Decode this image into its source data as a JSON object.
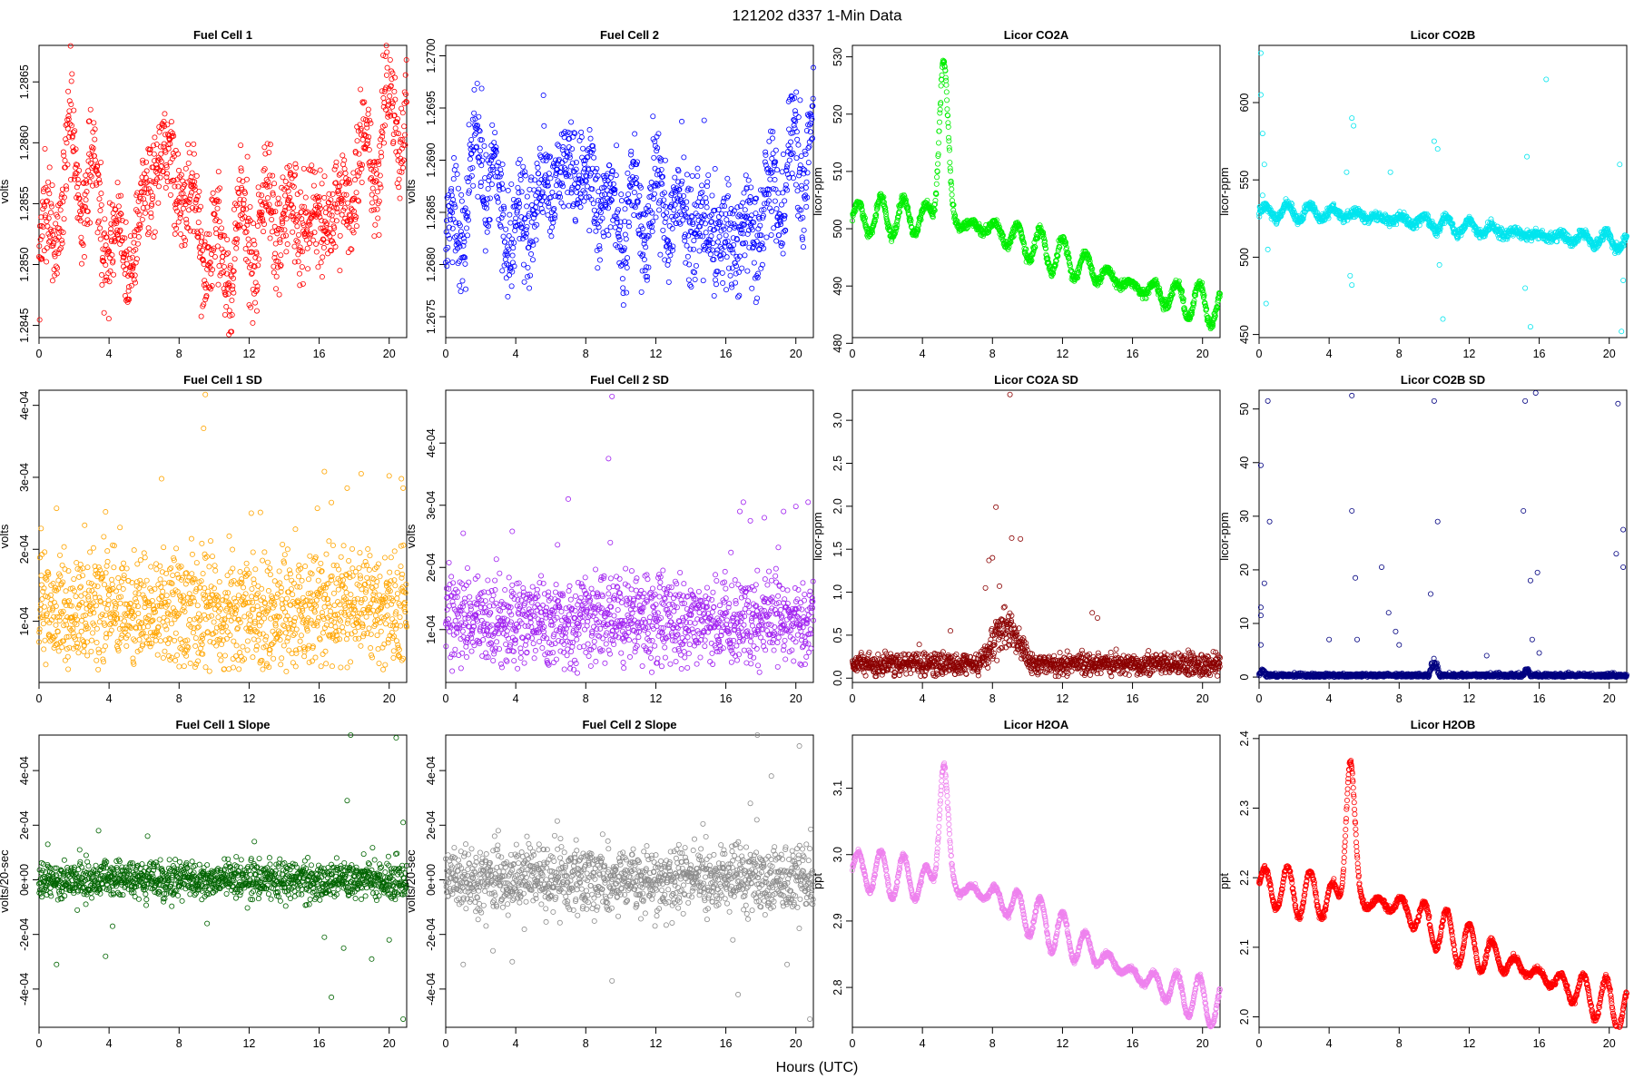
{
  "figure": {
    "title": "121202   d337   1-Min Data",
    "xlabel": "Hours (UTC)"
  },
  "chart_data": [
    {
      "type": "scatter",
      "title": "Fuel Cell 1",
      "ylabel": "volts",
      "xlim": [
        0,
        21
      ],
      "ylim": [
        1.2844,
        1.2868
      ],
      "yticks": [
        "1.2845",
        "1.2850",
        "1.2855",
        "1.2860",
        "1.2865"
      ],
      "yticks_v": [
        1.2845,
        1.285,
        1.2855,
        1.286,
        1.2865
      ],
      "xticks": [
        0,
        4,
        8,
        12,
        16,
        20
      ],
      "color": "#ff0000",
      "signal": {
        "base": 1.2855,
        "amp": 0.0004,
        "period": 1.4,
        "trend": [
          [
            0,
            1.285
          ],
          [
            2,
            1.2859
          ],
          [
            5,
            1.285
          ],
          [
            7,
            1.286
          ],
          [
            10,
            1.285
          ],
          [
            13,
            1.2854
          ],
          [
            17,
            1.2854
          ],
          [
            21,
            1.2864
          ]
        ],
        "noise": 0.0002,
        "spikes": []
      }
    },
    {
      "type": "scatter",
      "title": "Fuel Cell 2",
      "ylabel": "volts",
      "xlim": [
        0,
        21
      ],
      "ylim": [
        1.2673,
        1.2701
      ],
      "yticks": [
        "1.2675",
        "1.2680",
        "1.2685",
        "1.2690",
        "1.2695",
        "1.2700"
      ],
      "yticks_v": [
        1.2675,
        1.268,
        1.2685,
        1.269,
        1.2695,
        1.27
      ],
      "xticks": [
        0,
        4,
        8,
        12,
        16,
        20
      ],
      "color": "#0000ff",
      "signal": {
        "base": 1.2686,
        "amp": 0.0004,
        "period": 1.3,
        "trend": [
          [
            0,
            1.2681
          ],
          [
            2,
            1.2691
          ],
          [
            4,
            1.2683
          ],
          [
            7,
            1.269
          ],
          [
            10,
            1.2684
          ],
          [
            12,
            1.2686
          ],
          [
            17,
            1.2682
          ],
          [
            21,
            1.2692
          ]
        ],
        "noise": 0.00025,
        "spikes": []
      }
    },
    {
      "type": "scatter",
      "title": "Licor CO2A",
      "ylabel": "licor-ppm",
      "xlim": [
        0,
        21
      ],
      "ylim": [
        481,
        532
      ],
      "yticks": [
        "480",
        "490",
        "500",
        "510",
        "520",
        "530"
      ],
      "yticks_v": [
        480,
        490,
        500,
        510,
        520,
        530
      ],
      "xticks": [
        0,
        4,
        8,
        12,
        16,
        20
      ],
      "color": "#00ee00",
      "signal": {
        "base": 500,
        "amp": 3.5,
        "period": 1.3,
        "trend": [
          [
            0,
            502
          ],
          [
            4,
            502
          ],
          [
            8,
            500
          ],
          [
            12,
            495
          ],
          [
            16,
            490
          ],
          [
            21,
            486
          ]
        ],
        "noise": 0.4,
        "peak": [
          5.2,
          28,
          0.35
        ],
        "spikes": []
      }
    },
    {
      "type": "scatter",
      "title": "Licor CO2B",
      "ylabel": "licor-ppm",
      "xlim": [
        0,
        21
      ],
      "ylim": [
        448,
        637
      ],
      "yticks": [
        "450",
        "500",
        "550",
        "600"
      ],
      "yticks_v": [
        450,
        500,
        550,
        600
      ],
      "xticks": [
        0,
        4,
        8,
        12,
        16,
        20
      ],
      "color": "#00e5ee",
      "signal": {
        "base": 525,
        "amp": 5,
        "period": 1.3,
        "trend": [
          [
            0,
            530
          ],
          [
            5,
            528
          ],
          [
            10,
            522
          ],
          [
            15,
            515
          ],
          [
            21,
            510
          ]
        ],
        "noise": 1.5,
        "spikes": [
          [
            0.1,
            632
          ],
          [
            0.1,
            605
          ],
          [
            0.2,
            580
          ],
          [
            0.3,
            560
          ],
          [
            0.2,
            540
          ],
          [
            0.4,
            470
          ],
          [
            0.5,
            505
          ],
          [
            5.3,
            590
          ],
          [
            5.4,
            585
          ],
          [
            5.2,
            488
          ],
          [
            5.3,
            482
          ],
          [
            5.0,
            555
          ],
          [
            7.5,
            555
          ],
          [
            10.0,
            575
          ],
          [
            10.2,
            570
          ],
          [
            10.5,
            460
          ],
          [
            10.3,
            495
          ],
          [
            15.3,
            565
          ],
          [
            15.5,
            455
          ],
          [
            15.2,
            480
          ],
          [
            16.4,
            615
          ],
          [
            20.6,
            560
          ],
          [
            20.8,
            485
          ],
          [
            20.7,
            452
          ]
        ]
      }
    },
    {
      "type": "scatter",
      "title": "Fuel Cell 1 SD",
      "ylabel": "volts",
      "xlim": [
        0,
        21
      ],
      "ylim": [
        1.5e-05,
        0.000421
      ],
      "yticks": [
        "1e-04",
        "2e-04",
        "3e-04",
        "4e-04"
      ],
      "yticks_v": [
        0.0001,
        0.0002,
        0.0003,
        0.0004
      ],
      "xticks": [
        0,
        4,
        8,
        12,
        16,
        20
      ],
      "color": "#ffa500",
      "sd": {
        "center": 0.000115,
        "spread": 5e-05,
        "floor": 3e-05
      },
      "signal": {
        "spikes": [
          [
            1,
            0.000257
          ],
          [
            3.8,
            0.000252
          ],
          [
            4.3,
            0.000205
          ],
          [
            7.0,
            0.000298
          ],
          [
            9.4,
            0.000368
          ],
          [
            9.5,
            0.000415
          ],
          [
            9.3,
            0.000208
          ],
          [
            14.2,
            0.0002
          ],
          [
            15.9,
            0.000257
          ],
          [
            16.3,
            0.000308
          ],
          [
            16.7,
            0.000265
          ],
          [
            17.6,
            0.000285
          ],
          [
            18.4,
            0.000305
          ],
          [
            20.0,
            0.000302
          ],
          [
            20.7,
            0.000298
          ],
          [
            20.8,
            0.000285
          ],
          [
            17.4,
            0.000205
          ]
        ]
      }
    },
    {
      "type": "scatter",
      "title": "Fuel Cell 2 SD",
      "ylabel": "volts",
      "xlim": [
        0,
        21
      ],
      "ylim": [
        1.5e-05,
        0.000485
      ],
      "yticks": [
        "1e-04",
        "2e-04",
        "3e-04",
        "4e-04"
      ],
      "yticks_v": [
        0.0001,
        0.0002,
        0.0003,
        0.0004
      ],
      "xticks": [
        0,
        4,
        8,
        12,
        16,
        20
      ],
      "color": "#a020f0",
      "sd": {
        "center": 0.000115,
        "spread": 4.5e-05,
        "floor": 3e-05
      },
      "signal": {
        "spikes": [
          [
            1.0,
            0.000255
          ],
          [
            3.8,
            0.000258
          ],
          [
            7.0,
            0.00031
          ],
          [
            9.3,
            0.000375
          ],
          [
            9.5,
            0.000475
          ],
          [
            9.4,
            0.00024
          ],
          [
            16.8,
            0.00029
          ],
          [
            17.0,
            0.000305
          ],
          [
            17.4,
            0.000275
          ],
          [
            17.8,
            0.000195
          ],
          [
            18.2,
            0.00028
          ],
          [
            19.3,
            0.00029
          ],
          [
            20.0,
            0.000298
          ],
          [
            20.7,
            0.000305
          ],
          [
            20.4,
            0.000175
          ]
        ]
      }
    },
    {
      "type": "scatter",
      "title": "Licor CO2A SD",
      "ylabel": "licor-ppm",
      "xlim": [
        0,
        21
      ],
      "ylim": [
        -0.05,
        3.35
      ],
      "yticks": [
        "0.0",
        "0.5",
        "1.0",
        "1.5",
        "2.0",
        "2.5",
        "3.0"
      ],
      "yticks_v": [
        0,
        0.5,
        1,
        1.5,
        2,
        2.5,
        3
      ],
      "xticks": [
        0,
        4,
        8,
        12,
        16,
        20
      ],
      "color": "#8b0000",
      "sd": {
        "center": 0.16,
        "spread": 0.08,
        "floor": 0.02,
        "bump": [
          [
            7.3,
            10.2,
            0.55
          ]
        ]
      },
      "signal": {
        "spikes": [
          [
            7.8,
            1.37
          ],
          [
            8.0,
            1.4
          ],
          [
            8.2,
            1.99
          ],
          [
            8.4,
            1.07
          ],
          [
            9.0,
            3.3
          ],
          [
            9.1,
            1.63
          ],
          [
            9.6,
            1.62
          ],
          [
            8.7,
            0.83
          ],
          [
            13.7,
            0.76
          ],
          [
            14.0,
            0.7
          ],
          [
            7.6,
            1.05
          ],
          [
            5.6,
            0.55
          ]
        ]
      }
    },
    {
      "type": "scatter",
      "title": "Licor CO2B SD",
      "ylabel": "licor-ppm",
      "xlim": [
        0,
        21
      ],
      "ylim": [
        -1,
        53.5
      ],
      "yticks": [
        "0",
        "10",
        "20",
        "30",
        "40",
        "50"
      ],
      "yticks_v": [
        0,
        10,
        20,
        30,
        40,
        50
      ],
      "xticks": [
        0,
        4,
        8,
        12,
        16,
        20
      ],
      "color": "#000080",
      "sd": {
        "center": 0.3,
        "spread": 0.25,
        "floor": 0.0,
        "bump": [
          [
            9.7,
            10.3,
            3.5
          ],
          [
            15.1,
            15.5,
            1.5
          ],
          [
            0.0,
            0.4,
            1.2
          ]
        ]
      },
      "signal": {
        "spikes": [
          [
            0.1,
            39.5
          ],
          [
            0.1,
            13
          ],
          [
            0.1,
            11.5
          ],
          [
            0.1,
            6
          ],
          [
            0.3,
            17.5
          ],
          [
            0.5,
            51.5
          ],
          [
            0.6,
            29
          ],
          [
            5.3,
            52.5
          ],
          [
            5.3,
            31
          ],
          [
            5.5,
            18.5
          ],
          [
            5.6,
            7
          ],
          [
            4.0,
            7
          ],
          [
            7.0,
            20.5
          ],
          [
            7.4,
            12
          ],
          [
            7.8,
            8.5
          ],
          [
            8.0,
            6
          ],
          [
            10.0,
            51.5
          ],
          [
            10.2,
            29
          ],
          [
            9.8,
            15.5
          ],
          [
            15.2,
            51.5
          ],
          [
            15.1,
            31
          ],
          [
            15.5,
            18
          ],
          [
            15.8,
            53
          ],
          [
            15.9,
            19.5
          ],
          [
            15.6,
            7
          ],
          [
            20.5,
            51
          ],
          [
            20.4,
            23
          ],
          [
            20.8,
            27.5
          ],
          [
            20.8,
            20.5
          ],
          [
            16.0,
            4.5
          ],
          [
            13.0,
            4
          ]
        ]
      }
    },
    {
      "type": "scatter",
      "title": "Fuel Cell 1 Slope",
      "ylabel": "volts/20-sec",
      "xlim": [
        0,
        21
      ],
      "ylim": [
        -0.00054,
        0.00053
      ],
      "yticks": [
        "-4e-04",
        "-2e-04",
        "0e+00",
        "2e-04",
        "4e-04"
      ],
      "yticks_v": [
        -0.0004,
        -0.0002,
        0,
        0.0002,
        0.0004
      ],
      "xticks": [
        0,
        4,
        8,
        12,
        16,
        20
      ],
      "color": "#006400",
      "sd": {
        "center": 0.0,
        "spread": 3.5e-05,
        "floor": -1
      },
      "signal": {
        "spikes": [
          [
            0.5,
            0.00013
          ],
          [
            1.0,
            -0.00031
          ],
          [
            3.4,
            0.00018
          ],
          [
            3.8,
            -0.00028
          ],
          [
            4.2,
            -0.00017
          ],
          [
            6.2,
            0.00016
          ],
          [
            9.6,
            -0.00016
          ],
          [
            12.3,
            0.00014
          ],
          [
            16.3,
            -0.00021
          ],
          [
            16.7,
            -0.00043
          ],
          [
            17.0,
            8e-05
          ],
          [
            17.4,
            -0.00025
          ],
          [
            17.6,
            0.00029
          ],
          [
            17.8,
            0.00053
          ],
          [
            19.0,
            -0.00029
          ],
          [
            20.4,
            0.00052
          ],
          [
            20.0,
            -0.00022
          ],
          [
            20.8,
            0.00021
          ],
          [
            20.8,
            -0.00051
          ]
        ]
      }
    },
    {
      "type": "scatter",
      "title": "Fuel Cell 2 Slope",
      "ylabel": "volts/20-sec",
      "xlim": [
        0,
        21
      ],
      "ylim": [
        -0.00054,
        0.00053
      ],
      "yticks": [
        "-4e-04",
        "-2e-04",
        "0e+00",
        "2e-04",
        "4e-04"
      ],
      "yticks_v": [
        -0.0004,
        -0.0002,
        0,
        0.0002,
        0.0004
      ],
      "xticks": [
        0,
        4,
        8,
        12,
        16,
        20
      ],
      "color": "#8c8c8c",
      "sd": {
        "center": 0.0,
        "spread": 6e-05,
        "floor": -1
      },
      "signal": {
        "spikes": [
          [
            1.0,
            -0.00031
          ],
          [
            2.7,
            -0.00026
          ],
          [
            3.0,
            0.00018
          ],
          [
            3.8,
            -0.0003
          ],
          [
            9.5,
            -0.00037
          ],
          [
            16.7,
            -0.00042
          ],
          [
            16.4,
            -0.00022
          ],
          [
            17.4,
            0.00028
          ],
          [
            17.8,
            0.00053
          ],
          [
            18.6,
            0.00038
          ],
          [
            19.5,
            -0.00031
          ],
          [
            20.2,
            0.00049
          ],
          [
            20.8,
            -0.00051
          ],
          [
            20.6,
            0.00013
          ]
        ]
      }
    },
    {
      "type": "scatter",
      "title": "Licor H2OA",
      "ylabel": "ppt",
      "xlim": [
        0,
        21
      ],
      "ylim": [
        2.74,
        3.18
      ],
      "yticks": [
        "2.8",
        "2.9",
        "3.0",
        "3.1"
      ],
      "yticks_v": [
        2.8,
        2.9,
        3.0,
        3.1
      ],
      "xticks": [
        0,
        4,
        8,
        12,
        16,
        20
      ],
      "color": "#ee82ee",
      "signal": {
        "base": 2.97,
        "amp": 0.035,
        "period": 1.3,
        "trend": [
          [
            0,
            2.98
          ],
          [
            4,
            2.96
          ],
          [
            8,
            2.94
          ],
          [
            12,
            2.88
          ],
          [
            16,
            2.82
          ],
          [
            21,
            2.77
          ]
        ],
        "noise": 0.002,
        "peak": [
          5.2,
          0.18,
          0.35
        ],
        "spikes": []
      }
    },
    {
      "type": "scatter",
      "title": "Licor H2OB",
      "ylabel": "ppt",
      "xlim": [
        0,
        21
      ],
      "ylim": [
        1.985,
        2.405
      ],
      "yticks": [
        "2.0",
        "2.1",
        "2.2",
        "2.3",
        "2.4"
      ],
      "yticks_v": [
        2.0,
        2.1,
        2.2,
        2.3,
        2.4
      ],
      "xticks": [
        0,
        4,
        8,
        12,
        16,
        20
      ],
      "color": "#ff0000",
      "signal": {
        "base": 2.18,
        "amp": 0.035,
        "period": 1.3,
        "trend": [
          [
            0,
            2.19
          ],
          [
            4,
            2.17
          ],
          [
            8,
            2.16
          ],
          [
            12,
            2.1
          ],
          [
            16,
            2.06
          ],
          [
            21,
            2.01
          ]
        ],
        "noise": 0.002,
        "peak": [
          5.2,
          0.2,
          0.35
        ],
        "spikes": []
      }
    }
  ]
}
